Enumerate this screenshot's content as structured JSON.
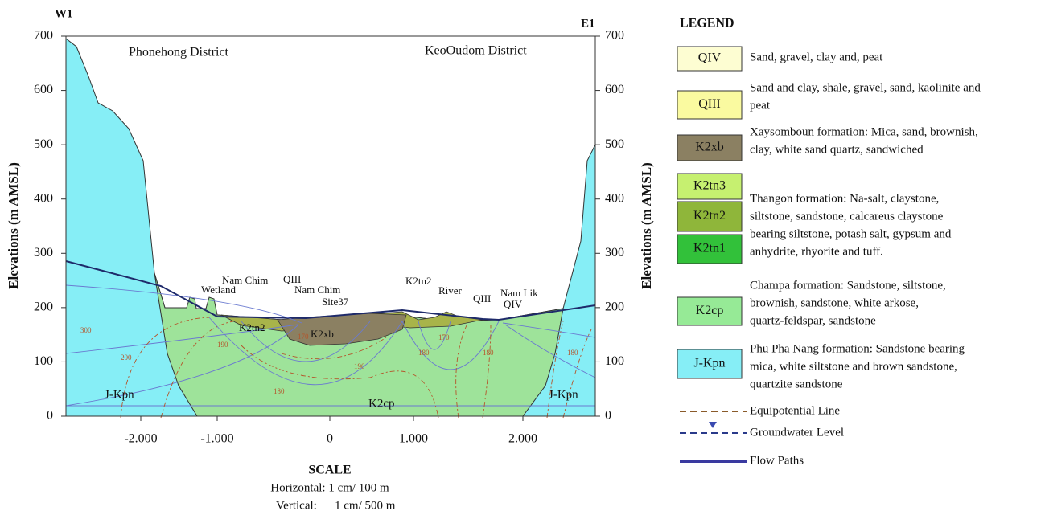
{
  "section": {
    "west": "W1",
    "east": "E1",
    "west_district": "Phonehong District",
    "east_district": "KeoOudom District",
    "y_label_left": "Elevations (m AMSL)",
    "y_label_right": "Elevations (m AMSL)",
    "yticks": [
      0,
      100,
      200,
      300,
      400,
      500,
      600,
      700
    ],
    "xticks": [
      "-2.000",
      "-1.000",
      "0",
      "1.000",
      "2.000"
    ],
    "features": [
      "Wetland",
      "Nam Chim",
      "QIII",
      "Nam Chim",
      "Site37",
      "K2tn2",
      "River",
      "QIII",
      "Nam Lik",
      "QIV"
    ],
    "units": [
      "K2tn2",
      "K2xb",
      "J-Kpn",
      "K2cp",
      "J-Kpn"
    ],
    "contours": [
      "300",
      "200",
      "190",
      "170",
      "190",
      "180",
      "180",
      "170",
      "180",
      "180"
    ]
  },
  "scale": {
    "title": "SCALE",
    "horizontal": "Horizontal: 1 cm/ 100 m",
    "vertical_label": "Vertical:",
    "vertical": "1 cm/ 500 m"
  },
  "legend": {
    "title": "LEGEND",
    "units": [
      {
        "code": "QIV",
        "description": [
          "Sand, gravel, clay and, peat"
        ]
      },
      {
        "code": "QIII",
        "description": [
          "Sand and clay, shale, gravel, sand, kaolinite and",
          "peat"
        ]
      },
      {
        "code": "K2xb",
        "description": [
          "Xaysomboun formation: Mica, sand, brownish,",
          "clay, white sand quartz, sandwiched"
        ]
      },
      {
        "code": "K2tn3",
        "description": []
      },
      {
        "code": "K2tn2",
        "description": [
          "Thangon formation: Na-salt, claystone,",
          "siltstone, sandstone, calcareus claystone",
          "bearing siltstone, potash salt, gypsum and",
          "anhydrite, rhyorite and tuff."
        ]
      },
      {
        "code": "K2tn1",
        "description": []
      },
      {
        "code": "K2cp",
        "description": [
          "Champa formation: Sandstone, siltstone,",
          "brownish, sandstone, white arkose,",
          "quartz-feldspar, sandstone"
        ]
      },
      {
        "code": "J-Kpn",
        "description": [
          "Phu Pha Nang formation: Sandstone bearing",
          "mica, white siltstone and brown sandstone,",
          "quartzite sandstone"
        ]
      }
    ],
    "lines": [
      "Equipotential Line",
      "Groundwater Level",
      "Flow Paths"
    ]
  }
}
